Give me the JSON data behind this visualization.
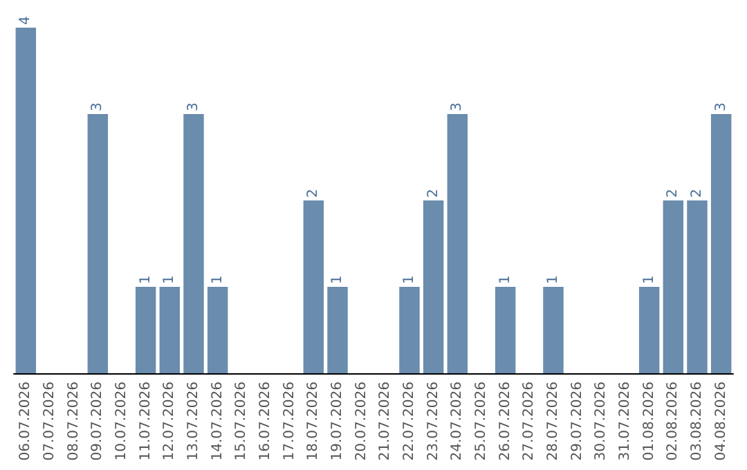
{
  "chart_data": {
    "type": "bar",
    "categories": [
      "06.07.2026",
      "07.07.2026",
      "08.07.2026",
      "09.07.2026",
      "10.07.2026",
      "11.07.2026",
      "12.07.2026",
      "13.07.2026",
      "14.07.2026",
      "15.07.2026",
      "16.07.2026",
      "17.07.2026",
      "18.07.2026",
      "19.07.2026",
      "20.07.2026",
      "21.07.2026",
      "22.07.2026",
      "23.07.2026",
      "24.07.2026",
      "25.07.2026",
      "26.07.2026",
      "27.07.2026",
      "28.07.2026",
      "29.07.2026",
      "30.07.2026",
      "31.07.2026",
      "01.08.2026",
      "02.08.2026",
      "03.08.2026",
      "04.08.2026"
    ],
    "values": [
      4,
      0,
      0,
      3,
      0,
      1,
      1,
      3,
      1,
      0,
      0,
      0,
      2,
      1,
      0,
      0,
      1,
      2,
      3,
      0,
      1,
      0,
      1,
      0,
      0,
      0,
      1,
      2,
      2,
      3
    ],
    "value_labels": [
      "4",
      null,
      null,
      "3",
      null,
      "1",
      "1",
      "3",
      "1",
      null,
      null,
      null,
      "2",
      "1",
      null,
      null,
      "1",
      "2",
      "3",
      null,
      "1",
      null,
      "1",
      null,
      null,
      null,
      "1",
      "2",
      "2",
      "3"
    ],
    "color": "#6a8cad",
    "grid": false,
    "tick_labels": "x"
  }
}
